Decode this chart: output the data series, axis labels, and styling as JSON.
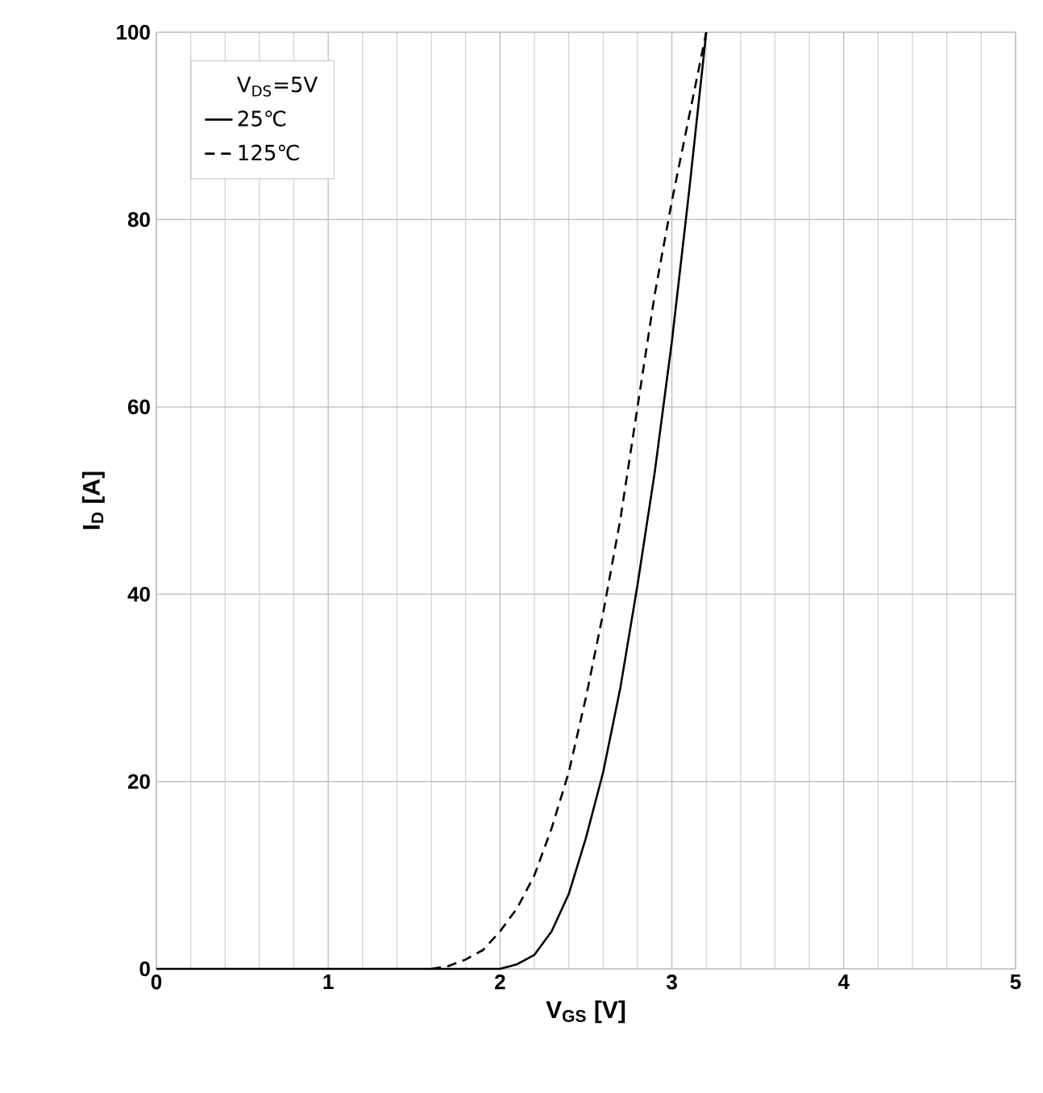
{
  "chart_data": {
    "type": "line",
    "xlabel": "V$_{GS}$ [V]",
    "ylabel": "I$_{D}$ [A]",
    "legend_title": "V$_{DS}$=5V",
    "xlim": [
      0,
      5
    ],
    "ylim": [
      0,
      100
    ],
    "xticks": [
      0,
      1,
      2,
      3,
      4,
      5
    ],
    "yticks": [
      0,
      20,
      40,
      60,
      80,
      100
    ],
    "grid": true,
    "legend": "top left",
    "series": [
      {
        "name": "25℃",
        "color": "#000000",
        "line_style": "solid",
        "x": [
          0,
          1,
          2.0,
          2.1,
          2.2,
          2.3,
          2.4,
          2.5,
          2.6,
          2.7,
          2.8,
          2.9,
          3.0,
          3.1,
          3.2
        ],
        "values": [
          0,
          0,
          0,
          0.5,
          1.5,
          4,
          8,
          14,
          21,
          30,
          41,
          53,
          67,
          83,
          100
        ]
      },
      {
        "name": "125℃",
        "color": "#000000",
        "line_style": "dashed",
        "x": [
          1.6,
          1.7,
          1.8,
          1.9,
          2.0,
          2.1,
          2.2,
          2.3,
          2.4,
          2.5,
          2.6,
          2.7,
          2.8,
          2.9,
          3.0,
          3.1,
          3.2
        ],
        "values": [
          0,
          0.3,
          1,
          2,
          4,
          6.5,
          10,
          15,
          21,
          29,
          38,
          48,
          60,
          72,
          82,
          91,
          100
        ]
      }
    ]
  }
}
